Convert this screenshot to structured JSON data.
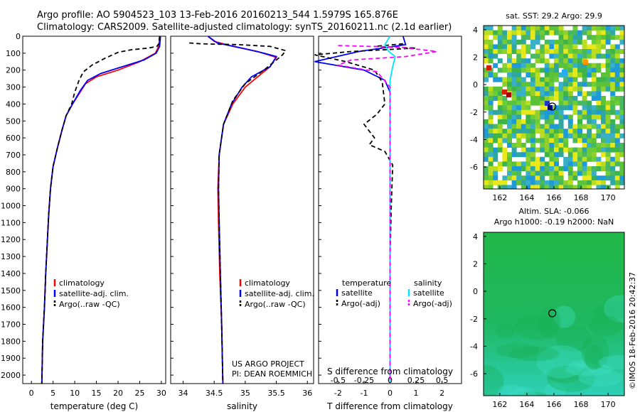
{
  "header": {
    "line1": "Argo profile: AO 5904523_103 13-Feb-2016 20160213_544 1.5979S 165.876E",
    "line2": "Climatology: CARS2009. Satellite-adjusted climatology: synTS_20160211.nc (2.1d earlier)"
  },
  "credit": "US ARGO PROJECT",
  "pi": "PI: DEAN ROEMMICH",
  "watermark": "©IMOS 18-Feb-2016 20:42:37",
  "colors": {
    "climatology": "#ff0000",
    "satellite": "#0000ff",
    "argo": "#000000",
    "s_satellite": "#00e5ff",
    "s_argo": "#ff00ff"
  },
  "chart_data": [
    {
      "type": "line",
      "name": "temperature-profile",
      "xlabel": "temperature (deg C)",
      "xlim": [
        -2,
        31
      ],
      "xticks": [
        "0",
        "5",
        "10",
        "15",
        "20",
        "25",
        "30"
      ],
      "ylim": [
        2050,
        0
      ],
      "yticks": [
        "0",
        "100",
        "200",
        "300",
        "400",
        "500",
        "600",
        "700",
        "800",
        "900",
        "1000",
        "1100",
        "1200",
        "1300",
        "1400",
        "1500",
        "1600",
        "1700",
        "1800",
        "1900",
        "2000"
      ],
      "legend": [
        "climatology",
        "satellite-adj. clim.",
        "Argo(..raw -QC)"
      ],
      "series": [
        {
          "name": "climatology",
          "color": "#ff0000",
          "dash": "",
          "points": [
            [
              29.6,
              0
            ],
            [
              29.4,
              60
            ],
            [
              28.6,
              100
            ],
            [
              25,
              150
            ],
            [
              20,
              200
            ],
            [
              15,
              240
            ],
            [
              12.5,
              280
            ],
            [
              11,
              340
            ],
            [
              9.5,
              400
            ],
            [
              8,
              470
            ],
            [
              7,
              560
            ],
            [
              6,
              660
            ],
            [
              5,
              770
            ],
            [
              4.4,
              900
            ],
            [
              4,
              1050
            ],
            [
              3.7,
              1200
            ],
            [
              3.3,
              1400
            ],
            [
              3,
              1600
            ],
            [
              2.6,
              1800
            ],
            [
              2.4,
              2050
            ]
          ]
        },
        {
          "name": "satellite-adj. clim.",
          "color": "#0000ff",
          "dash": "",
          "points": [
            [
              29.8,
              0
            ],
            [
              29.6,
              60
            ],
            [
              28.8,
              100
            ],
            [
              26,
              140
            ],
            [
              21,
              180
            ],
            [
              16,
              220
            ],
            [
              13,
              260
            ],
            [
              11.3,
              320
            ],
            [
              9.5,
              400
            ],
            [
              8,
              470
            ],
            [
              7,
              560
            ],
            [
              6,
              660
            ],
            [
              5,
              770
            ],
            [
              4.4,
              900
            ],
            [
              4,
              1050
            ],
            [
              3.7,
              1200
            ],
            [
              3.3,
              1400
            ],
            [
              3,
              1600
            ],
            [
              2.6,
              1800
            ],
            [
              2.4,
              2050
            ]
          ]
        },
        {
          "name": "Argo(..raw -QC)",
          "color": "#000000",
          "dash": "6,4",
          "points": [
            [
              29.6,
              0
            ],
            [
              29.4,
              45
            ],
            [
              29,
              60
            ],
            [
              27,
              70
            ],
            [
              23,
              80
            ],
            [
              20,
              95
            ],
            [
              17,
              130
            ],
            [
              14,
              170
            ],
            [
              12,
              210
            ],
            [
              11,
              260
            ],
            [
              10,
              330
            ],
            [
              9.3,
              400
            ],
            [
              8,
              470
            ],
            [
              7,
              560
            ],
            [
              6,
              660
            ],
            [
              5,
              770
            ],
            [
              4.4,
              900
            ],
            [
              4,
              1050
            ],
            [
              3.7,
              1200
            ],
            [
              3.3,
              1400
            ],
            [
              3,
              1600
            ],
            [
              2.6,
              1800
            ],
            [
              2.4,
              2050
            ]
          ]
        }
      ]
    },
    {
      "type": "line",
      "name": "salinity-profile",
      "xlabel": "salinity",
      "xlim": [
        33.8,
        36.1
      ],
      "xticks": [
        "34",
        "34.5",
        "35",
        "35.5",
        "36"
      ],
      "ylim": [
        2050,
        0
      ],
      "legend": [
        "climatology",
        "satellite-adj. clim.",
        "Argo(..raw -QC)"
      ],
      "series": [
        {
          "name": "climatology",
          "color": "#ff0000",
          "dash": "",
          "points": [
            [
              34.4,
              0
            ],
            [
              34.5,
              30
            ],
            [
              34.8,
              60
            ],
            [
              35.2,
              90
            ],
            [
              35.5,
              125
            ],
            [
              35.4,
              180
            ],
            [
              35.2,
              240
            ],
            [
              35,
              300
            ],
            [
              34.8,
              400
            ],
            [
              34.65,
              520
            ],
            [
              34.58,
              700
            ],
            [
              34.56,
              900
            ],
            [
              34.57,
              1100
            ],
            [
              34.59,
              1400
            ],
            [
              34.62,
              1700
            ],
            [
              34.64,
              2050
            ]
          ]
        },
        {
          "name": "satellite-adj. clim.",
          "color": "#0000ff",
          "dash": "",
          "points": [
            [
              34.4,
              0
            ],
            [
              34.55,
              40
            ],
            [
              34.95,
              70
            ],
            [
              35.3,
              100
            ],
            [
              35.5,
              120
            ],
            [
              35.4,
              180
            ],
            [
              35.1,
              240
            ],
            [
              34.95,
              300
            ],
            [
              34.78,
              400
            ],
            [
              34.65,
              520
            ],
            [
              34.58,
              700
            ],
            [
              34.57,
              900
            ],
            [
              34.58,
              1100
            ],
            [
              34.6,
              1400
            ],
            [
              34.62,
              1700
            ],
            [
              34.64,
              2050
            ]
          ]
        },
        {
          "name": "Argo(..raw -QC)",
          "color": "#000000",
          "dash": "6,4",
          "points": [
            [
              34.1,
              40
            ],
            [
              34.3,
              45
            ],
            [
              34.9,
              50
            ],
            [
              35.4,
              60
            ],
            [
              35.65,
              85
            ],
            [
              35.6,
              110
            ],
            [
              35.5,
              140
            ],
            [
              35.3,
              200
            ],
            [
              35,
              280
            ],
            [
              34.8,
              380
            ],
            [
              34.65,
              520
            ],
            [
              34.58,
              700
            ],
            [
              34.57,
              900
            ],
            [
              34.58,
              1100
            ],
            [
              34.6,
              1400
            ],
            [
              34.62,
              1700
            ],
            [
              34.64,
              2050
            ]
          ]
        }
      ]
    },
    {
      "type": "line",
      "name": "difference-profile",
      "xlabel": "T difference from climatology",
      "xlabel_top": "S difference from climatology",
      "xlim": [
        -2.75,
        2.75
      ],
      "xticks": [
        "-2",
        "-1",
        "0",
        "1",
        "2"
      ],
      "sticks": [
        "-0.5",
        "-0.25",
        "0",
        "0.25",
        "0.5"
      ],
      "ylim": [
        2050,
        0
      ],
      "legend_headers": [
        "temperature",
        "salinity"
      ],
      "legend": [
        "satellite",
        "Argo(-adj)",
        "satellite",
        "Argo(-adj)"
      ],
      "series": [
        {
          "name": "temperature satellite",
          "color": "#0000ff",
          "dash": "",
          "points": [
            [
              0.5,
              0
            ],
            [
              0.6,
              50
            ],
            [
              -1.2,
              90
            ],
            [
              -2.9,
              150
            ],
            [
              -1,
              200
            ],
            [
              -0.2,
              260
            ],
            [
              0,
              330
            ],
            [
              0,
              2050
            ]
          ]
        },
        {
          "name": "temperature Argo(-adj)",
          "color": "#000000",
          "dash": "6,4",
          "points": [
            [
              0.5,
              45
            ],
            [
              -0.6,
              60
            ],
            [
              1,
              70
            ],
            [
              -1.5,
              90
            ],
            [
              -2.9,
              110
            ],
            [
              -1.7,
              150
            ],
            [
              -0.6,
              200
            ],
            [
              -0.3,
              270
            ],
            [
              -0.2,
              400
            ],
            [
              -0.5,
              460
            ],
            [
              -1,
              520
            ],
            [
              -0.6,
              600
            ],
            [
              -0.8,
              640
            ],
            [
              -0.2,
              680
            ],
            [
              0.1,
              760
            ],
            [
              0.05,
              1000
            ],
            [
              0,
              1300
            ],
            [
              0,
              2050
            ]
          ]
        },
        {
          "name": "salinity satellite",
          "color": "#00e5ff",
          "dash": "",
          "points": [
            [
              0,
              0
            ],
            [
              -0.2,
              50
            ],
            [
              -0.05,
              90
            ],
            [
              0.2,
              120
            ],
            [
              0.1,
              180
            ],
            [
              0,
              260
            ],
            [
              0,
              2050
            ]
          ]
        },
        {
          "name": "salinity Argo(-adj)",
          "color": "#ff00ff",
          "dash": "6,4",
          "points": [
            [
              -2,
              55
            ],
            [
              0.4,
              65
            ],
            [
              1.8,
              90
            ],
            [
              0.6,
              120
            ],
            [
              -1.5,
              140
            ],
            [
              -2,
              170
            ],
            [
              -0.5,
              210
            ],
            [
              0,
              300
            ],
            [
              0,
              2050
            ]
          ]
        }
      ]
    },
    {
      "type": "heatmap",
      "name": "sst-map",
      "title": "sat. SST: 29.2  Argo: 29.9",
      "xlim": [
        160.8,
        171.2
      ],
      "ylim": [
        -7.6,
        4.3
      ],
      "xticks": [
        "162",
        "164",
        "166",
        "168",
        "170"
      ],
      "yticks": [
        "4",
        "2",
        "0",
        "-2",
        "-4",
        "-6"
      ],
      "argo_position": [
        165.876,
        -1.5979
      ]
    },
    {
      "type": "heatmap",
      "name": "sla-map",
      "title": "Altim. SLA: -0.066",
      "subtitle": "Argo h1000: -0.19 h2000: NaN",
      "xlim": [
        160.8,
        171.2
      ],
      "ylim": [
        -7.6,
        4.3
      ],
      "xticks": [
        "162",
        "164",
        "166",
        "168",
        "170"
      ],
      "yticks": [
        "4",
        "2",
        "0",
        "-2",
        "-4",
        "-6"
      ],
      "argo_position": [
        165.876,
        -1.5979
      ]
    }
  ]
}
